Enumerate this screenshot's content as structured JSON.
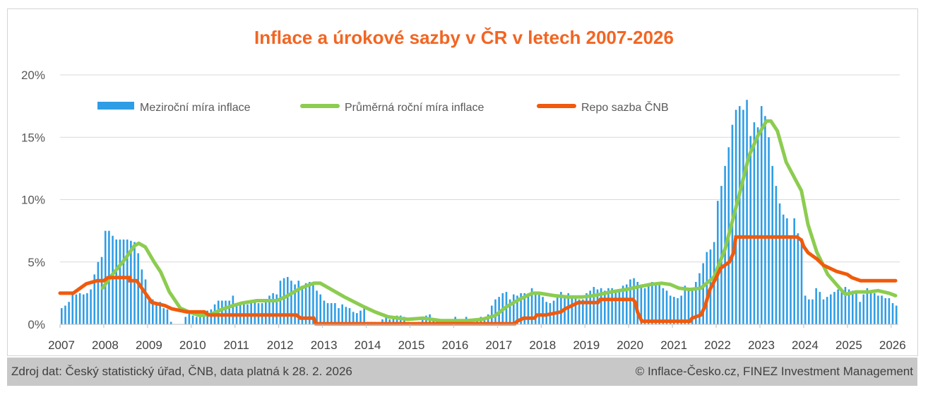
{
  "chart_data": {
    "type": "bar+line",
    "title": "Inflace a úrokové sazby v ČR v letech 2007-2026",
    "y_ticks": [
      "0%",
      "5%",
      "10%",
      "15%",
      "20%"
    ],
    "x_ticks": [
      "2007",
      "2008",
      "2009",
      "2010",
      "2011",
      "2012",
      "2013",
      "2014",
      "2015",
      "2016",
      "2017",
      "2018",
      "2019",
      "2020",
      "2021",
      "2022",
      "2023",
      "2024",
      "2025",
      "2026"
    ],
    "ylim": [
      0,
      20
    ],
    "xlim": [
      2007,
      2026.1
    ],
    "grid": "horizontal",
    "legend_position": "top",
    "colors": {
      "bars": "#2e9de6",
      "avg": "#8ccc50",
      "repo": "#f05a0c",
      "title": "#f26522"
    },
    "series": [
      {
        "name": "Meziroční míra inflace",
        "type": "bar",
        "x_start": 2007.0,
        "x_step": 0.08333,
        "values": [
          1.3,
          1.5,
          1.8,
          2.5,
          2.4,
          2.5,
          2.4,
          2.5,
          2.8,
          4.0,
          5.0,
          5.4,
          7.5,
          7.5,
          7.1,
          6.8,
          6.8,
          6.8,
          6.8,
          6.7,
          6.6,
          5.7,
          4.4,
          3.6,
          2.2,
          2.0,
          1.7,
          1.8,
          1.3,
          1.2,
          0.2,
          0.0,
          -0.4,
          0.0,
          0.6,
          1.0,
          0.7,
          0.6,
          0.7,
          0.8,
          1.1,
          1.2,
          1.6,
          1.9,
          1.9,
          1.9,
          1.9,
          2.3,
          1.7,
          1.7,
          1.7,
          1.6,
          1.7,
          1.8,
          1.7,
          1.7,
          1.8,
          2.3,
          2.5,
          2.4,
          3.5,
          3.7,
          3.8,
          3.5,
          3.2,
          3.5,
          3.1,
          3.3,
          3.4,
          3.4,
          2.7,
          2.4,
          1.9,
          1.7,
          1.7,
          1.7,
          1.3,
          1.6,
          1.4,
          1.3,
          1.0,
          0.9,
          1.1,
          1.4,
          0.2,
          0.2,
          0.2,
          0.1,
          0.4,
          0.7,
          0.4,
          0.6,
          0.7,
          0.7,
          0.6,
          0.1,
          0.1,
          0.1,
          0.2,
          0.5,
          0.7,
          0.8,
          0.5,
          0.3,
          0.4,
          0.2,
          0.1,
          0.1,
          0.6,
          0.4,
          0.3,
          0.6,
          0.1,
          0.1,
          0.5,
          0.6,
          0.5,
          0.8,
          1.5,
          2.0,
          2.2,
          2.5,
          2.6,
          2.0,
          2.4,
          2.3,
          2.5,
          2.5,
          2.5,
          2.9,
          2.6,
          2.4,
          2.2,
          1.8,
          1.7,
          1.9,
          2.2,
          2.6,
          2.3,
          2.5,
          2.3,
          2.2,
          2.0,
          2.0,
          2.5,
          2.7,
          3.0,
          2.8,
          2.9,
          2.7,
          2.9,
          2.9,
          2.7,
          2.7,
          3.1,
          3.2,
          3.6,
          3.7,
          3.4,
          3.2,
          2.9,
          3.3,
          3.4,
          3.3,
          3.2,
          2.9,
          2.7,
          2.3,
          2.2,
          2.1,
          2.3,
          3.1,
          2.9,
          2.8,
          3.4,
          4.1,
          4.9,
          5.8,
          6.0,
          6.6,
          9.9,
          11.1,
          12.7,
          14.2,
          16.0,
          17.2,
          17.5,
          17.2,
          18.0,
          15.1,
          16.2,
          15.8,
          17.5,
          16.7,
          15.0,
          12.7,
          11.1,
          9.7,
          8.8,
          8.5,
          6.9,
          8.5,
          7.3,
          6.9,
          2.3,
          2.0,
          2.0,
          2.9,
          2.6,
          2.0,
          2.2,
          2.4,
          2.6,
          2.8,
          2.8,
          3.0,
          2.8,
          2.7,
          2.7,
          1.8,
          2.4,
          2.9,
          2.7,
          2.5,
          2.3,
          2.3,
          2.1,
          2.1,
          1.7,
          1.5
        ]
      },
      {
        "name": "Průměrná roční míra inflace",
        "type": "line",
        "points": [
          [
            2007.97,
            2.9
          ],
          [
            2008.2,
            4.0
          ],
          [
            2008.5,
            5.3
          ],
          [
            2008.7,
            6.3
          ],
          [
            2008.8,
            6.5
          ],
          [
            2008.95,
            6.2
          ],
          [
            2009.15,
            5.0
          ],
          [
            2009.3,
            4.2
          ],
          [
            2009.5,
            2.6
          ],
          [
            2009.75,
            1.3
          ],
          [
            2009.95,
            1.0
          ],
          [
            2010.2,
            0.7
          ],
          [
            2010.45,
            0.8
          ],
          [
            2010.7,
            1.2
          ],
          [
            2010.95,
            1.5
          ],
          [
            2011.15,
            1.7
          ],
          [
            2011.5,
            1.9
          ],
          [
            2011.95,
            1.9
          ],
          [
            2012.15,
            2.2
          ],
          [
            2012.5,
            2.9
          ],
          [
            2012.8,
            3.3
          ],
          [
            2012.95,
            3.3
          ],
          [
            2013.15,
            2.9
          ],
          [
            2013.5,
            2.2
          ],
          [
            2013.95,
            1.4
          ],
          [
            2014.2,
            1.0
          ],
          [
            2014.5,
            0.6
          ],
          [
            2014.95,
            0.4
          ],
          [
            2015.3,
            0.5
          ],
          [
            2015.7,
            0.3
          ],
          [
            2015.95,
            0.3
          ],
          [
            2016.3,
            0.3
          ],
          [
            2016.65,
            0.4
          ],
          [
            2016.95,
            0.7
          ],
          [
            2017.2,
            1.4
          ],
          [
            2017.5,
            2.0
          ],
          [
            2017.8,
            2.5
          ],
          [
            2017.95,
            2.5
          ],
          [
            2018.3,
            2.3
          ],
          [
            2018.6,
            2.2
          ],
          [
            2018.95,
            2.2
          ],
          [
            2019.2,
            2.3
          ],
          [
            2019.6,
            2.6
          ],
          [
            2019.95,
            2.8
          ],
          [
            2020.2,
            3.0
          ],
          [
            2020.5,
            3.2
          ],
          [
            2020.75,
            3.3
          ],
          [
            2020.95,
            3.2
          ],
          [
            2021.15,
            2.9
          ],
          [
            2021.4,
            2.8
          ],
          [
            2021.65,
            2.9
          ],
          [
            2021.95,
            3.8
          ],
          [
            2022.2,
            6.0
          ],
          [
            2022.5,
            10.0
          ],
          [
            2022.75,
            13.5
          ],
          [
            2022.95,
            15.1
          ],
          [
            2023.15,
            16.3
          ],
          [
            2023.25,
            16.3
          ],
          [
            2023.4,
            15.5
          ],
          [
            2023.6,
            13.0
          ],
          [
            2023.95,
            10.7
          ],
          [
            2024.1,
            8.0
          ],
          [
            2024.3,
            5.8
          ],
          [
            2024.55,
            4.0
          ],
          [
            2024.8,
            3.0
          ],
          [
            2024.95,
            2.4
          ],
          [
            2025.2,
            2.6
          ],
          [
            2025.5,
            2.6
          ],
          [
            2025.7,
            2.7
          ],
          [
            2025.95,
            2.5
          ],
          [
            2026.1,
            2.3
          ]
        ]
      },
      {
        "name": "Repo sazba ČNB",
        "type": "step",
        "points": [
          [
            2007.0,
            2.5
          ],
          [
            2007.3,
            2.5
          ],
          [
            2007.5,
            3.0
          ],
          [
            2007.6,
            3.25
          ],
          [
            2007.85,
            3.5
          ],
          [
            2008.0,
            3.5
          ],
          [
            2008.1,
            3.75
          ],
          [
            2008.6,
            3.75
          ],
          [
            2008.6,
            3.5
          ],
          [
            2008.75,
            3.5
          ],
          [
            2008.9,
            2.75
          ],
          [
            2009.0,
            2.25
          ],
          [
            2009.1,
            1.75
          ],
          [
            2009.4,
            1.5
          ],
          [
            2009.55,
            1.25
          ],
          [
            2009.9,
            1.0
          ],
          [
            2010.3,
            1.0
          ],
          [
            2010.4,
            0.75
          ],
          [
            2012.4,
            0.75
          ],
          [
            2012.5,
            0.5
          ],
          [
            2012.8,
            0.5
          ],
          [
            2012.85,
            0.05
          ],
          [
            2017.4,
            0.05
          ],
          [
            2017.45,
            0.25
          ],
          [
            2017.6,
            0.5
          ],
          [
            2017.85,
            0.5
          ],
          [
            2017.9,
            0.75
          ],
          [
            2018.1,
            0.75
          ],
          [
            2018.45,
            1.0
          ],
          [
            2018.55,
            1.25
          ],
          [
            2018.7,
            1.5
          ],
          [
            2018.85,
            1.75
          ],
          [
            2019.3,
            1.75
          ],
          [
            2019.35,
            2.0
          ],
          [
            2020.1,
            2.0
          ],
          [
            2020.15,
            1.75
          ],
          [
            2020.2,
            1.0
          ],
          [
            2020.3,
            0.25
          ],
          [
            2021.4,
            0.25
          ],
          [
            2021.45,
            0.5
          ],
          [
            2021.65,
            0.75
          ],
          [
            2021.75,
            1.5
          ],
          [
            2021.85,
            2.75
          ],
          [
            2022.0,
            3.75
          ],
          [
            2022.1,
            4.5
          ],
          [
            2022.3,
            5.0
          ],
          [
            2022.4,
            5.75
          ],
          [
            2022.45,
            7.0
          ],
          [
            2023.85,
            7.0
          ],
          [
            2023.95,
            6.75
          ],
          [
            2024.0,
            6.25
          ],
          [
            2024.1,
            5.75
          ],
          [
            2024.3,
            5.25
          ],
          [
            2024.45,
            4.75
          ],
          [
            2024.6,
            4.5
          ],
          [
            2024.75,
            4.25
          ],
          [
            2025.0,
            4.0
          ],
          [
            2025.1,
            3.75
          ],
          [
            2025.3,
            3.5
          ],
          [
            2026.1,
            3.5
          ]
        ]
      }
    ]
  },
  "footer": {
    "source": "Zdroj dat: Český statistický úřad, ČNB, data platná k 28. 2. 2026",
    "copyright": "© Inflace-Česko.cz, FINEZ Investment Management"
  }
}
